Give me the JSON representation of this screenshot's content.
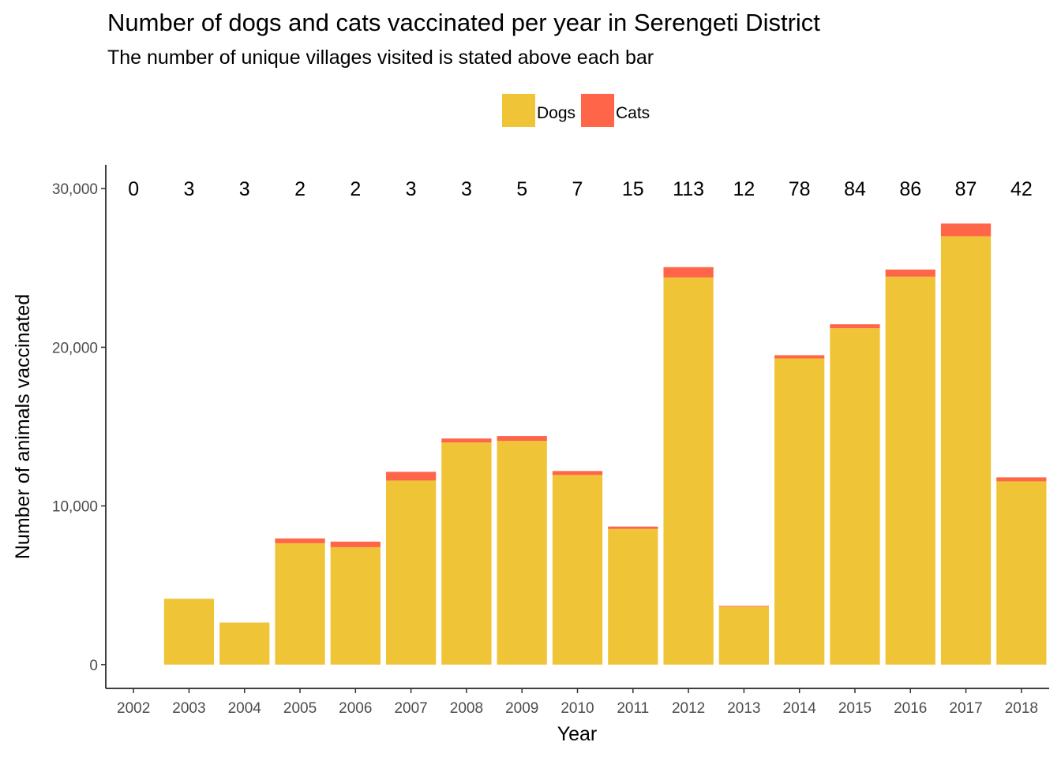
{
  "chart_data": {
    "type": "bar",
    "stacked": true,
    "title": "Number of dogs and cats vaccinated per year in Serengeti District",
    "subtitle": "The number of unique villages visited is stated above each bar",
    "xlabel": "Year",
    "ylabel": "Number of animals vaccinated",
    "categories": [
      "2002",
      "2003",
      "2004",
      "2005",
      "2006",
      "2007",
      "2008",
      "2009",
      "2010",
      "2011",
      "2012",
      "2013",
      "2014",
      "2015",
      "2016",
      "2017",
      "2018"
    ],
    "series": [
      {
        "name": "Dogs",
        "color": "#F0C437",
        "values": [
          0,
          4150,
          2650,
          7650,
          7400,
          11600,
          14000,
          14100,
          11950,
          8550,
          24400,
          3650,
          19300,
          21200,
          24450,
          27000,
          11550
        ]
      },
      {
        "name": "Cats",
        "color": "#FF6549",
        "values": [
          0,
          0,
          0,
          300,
          350,
          550,
          250,
          300,
          250,
          150,
          650,
          50,
          200,
          250,
          450,
          800,
          250
        ]
      }
    ],
    "bar_labels": [
      "0",
      "3",
      "3",
      "2",
      "2",
      "3",
      "3",
      "5",
      "7",
      "15",
      "113",
      "12",
      "78",
      "84",
      "86",
      "87",
      "42"
    ],
    "yticks": [
      0,
      10000,
      20000,
      30000
    ],
    "ytick_labels": [
      "0",
      "10,000",
      "20,000",
      "30,000"
    ],
    "ylim": [
      -1500,
      31500
    ],
    "grid": false,
    "legend_position": "top"
  }
}
